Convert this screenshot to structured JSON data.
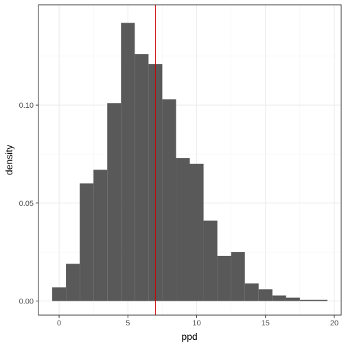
{
  "chart_data": {
    "type": "bar",
    "subtype": "histogram",
    "xlabel": "ppd",
    "ylabel": "density",
    "xlim": [
      -1.5,
      20.5
    ],
    "ylim": [
      -0.0072,
      0.1512
    ],
    "x_ticks": [
      0,
      5,
      10,
      15,
      20
    ],
    "x_tick_labels": [
      "0",
      "5",
      "10",
      "15",
      "20"
    ],
    "y_ticks": [
      0.0,
      0.05,
      0.1
    ],
    "y_tick_labels": [
      "0.00",
      "0.05",
      "0.10"
    ],
    "bin_width": 1,
    "bins": [
      {
        "x0": -0.5,
        "x1": 0.5,
        "density": 0.007
      },
      {
        "x0": 0.5,
        "x1": 1.5,
        "density": 0.019
      },
      {
        "x0": 1.5,
        "x1": 2.5,
        "density": 0.06
      },
      {
        "x0": 2.5,
        "x1": 3.5,
        "density": 0.067
      },
      {
        "x0": 3.5,
        "x1": 4.5,
        "density": 0.101
      },
      {
        "x0": 4.5,
        "x1": 5.5,
        "density": 0.142
      },
      {
        "x0": 5.5,
        "x1": 6.5,
        "density": 0.126
      },
      {
        "x0": 6.5,
        "x1": 7.5,
        "density": 0.121
      },
      {
        "x0": 7.5,
        "x1": 8.5,
        "density": 0.103
      },
      {
        "x0": 8.5,
        "x1": 9.5,
        "density": 0.073
      },
      {
        "x0": 9.5,
        "x1": 10.5,
        "density": 0.07
      },
      {
        "x0": 10.5,
        "x1": 11.5,
        "density": 0.041
      },
      {
        "x0": 11.5,
        "x1": 12.5,
        "density": 0.023
      },
      {
        "x0": 12.5,
        "x1": 13.5,
        "density": 0.025
      },
      {
        "x0": 13.5,
        "x1": 14.5,
        "density": 0.009
      },
      {
        "x0": 14.5,
        "x1": 15.5,
        "density": 0.006
      },
      {
        "x0": 15.5,
        "x1": 16.5,
        "density": 0.0028
      },
      {
        "x0": 16.5,
        "x1": 17.5,
        "density": 0.0017
      },
      {
        "x0": 17.5,
        "x1": 18.5,
        "density": 0.0006
      },
      {
        "x0": 18.5,
        "x1": 19.5,
        "density": 0.0006
      }
    ],
    "reference_line": {
      "x": 7.0,
      "color": "#cc0000"
    },
    "bar_color": "#595959",
    "grid": true,
    "legend": "none"
  }
}
